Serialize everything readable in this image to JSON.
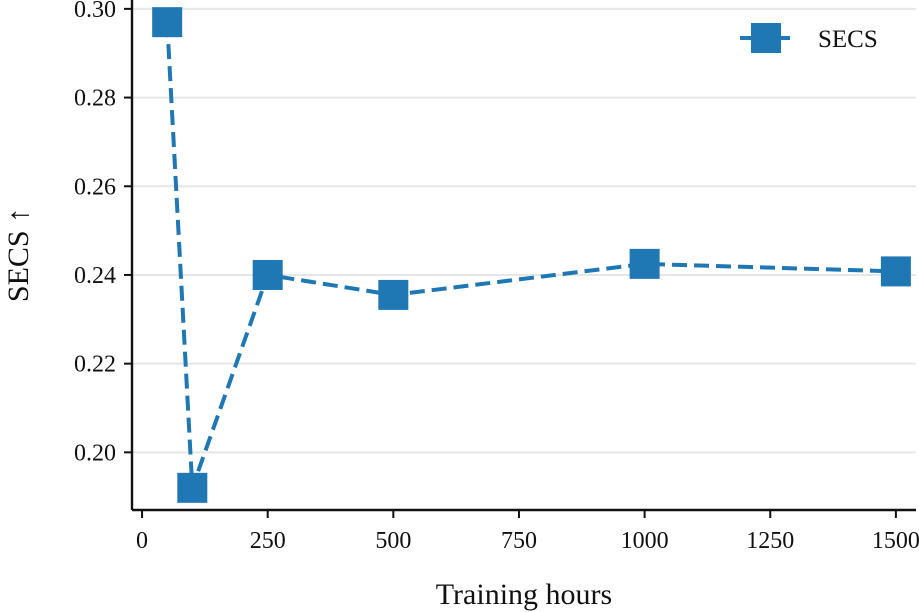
{
  "chart_data": {
    "type": "line",
    "xlabel": "Training hours",
    "ylabel": "SECS ↑",
    "xlim": [
      -20,
      1540
    ],
    "ylim": [
      0.187,
      0.302
    ],
    "x_ticks": [
      0,
      250,
      500,
      750,
      1000,
      1250,
      1500
    ],
    "y_ticks": [
      0.2,
      0.22,
      0.24,
      0.26,
      0.28,
      0.3
    ],
    "y_tick_labels": [
      "0.20",
      "0.22",
      "0.24",
      "0.26",
      "0.28",
      "0.30"
    ],
    "grid": "horizontal",
    "legend_position": "top-right",
    "series": [
      {
        "name": "SECS",
        "color": "#1f77b4",
        "line_style": "dashed",
        "marker": "square",
        "x": [
          50,
          100,
          250,
          500,
          1000,
          1500
        ],
        "y": [
          0.297,
          0.192,
          0.24,
          0.2355,
          0.2425,
          0.2408
        ]
      }
    ]
  }
}
